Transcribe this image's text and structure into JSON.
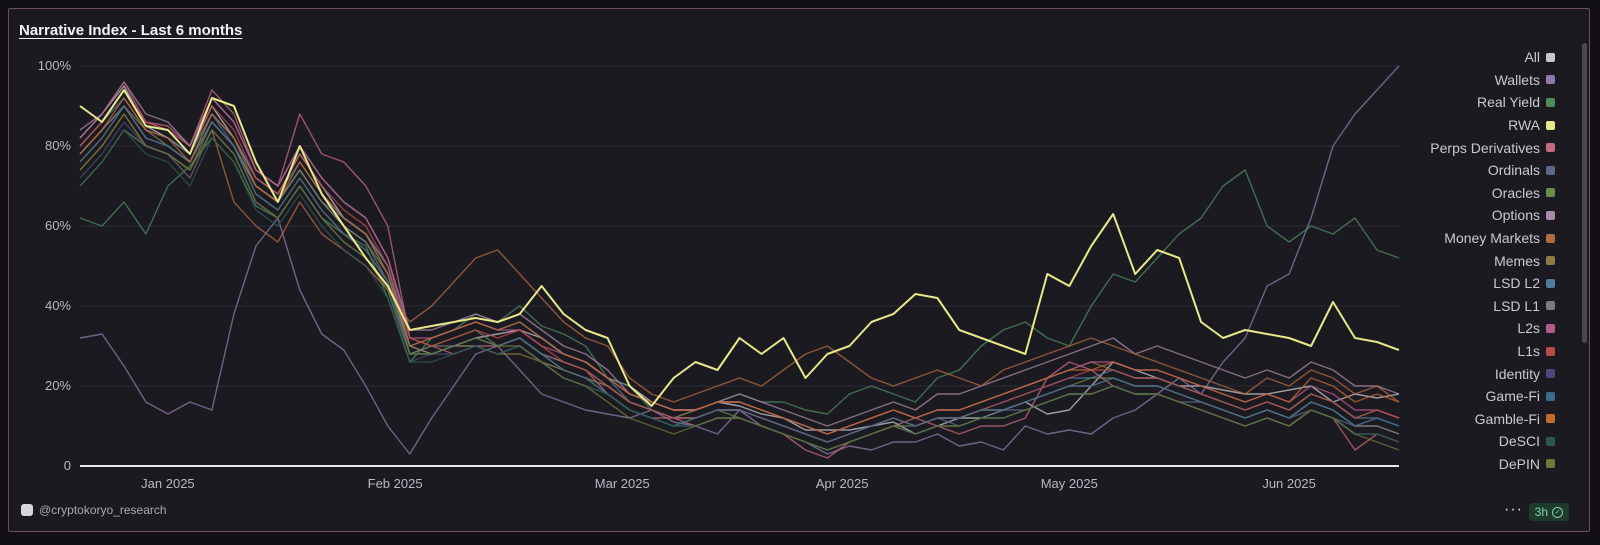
{
  "chart_data": {
    "type": "line",
    "title": "Narrative Index - Last 6 months",
    "xlabel": "",
    "ylabel": "",
    "ylim": [
      0,
      100
    ],
    "y_ticks": [
      "0",
      "20%",
      "40%",
      "60%",
      "80%",
      "100%"
    ],
    "x_ticks": [
      "Jan 2025",
      "Feb 2025",
      "Mar 2025",
      "Apr 2025",
      "May 2025",
      "Jun 2025"
    ],
    "x": [
      0,
      3,
      6,
      9,
      12,
      15,
      18,
      21,
      24,
      27,
      30,
      33,
      36,
      39,
      42,
      45,
      48,
      51,
      54,
      57,
      60,
      63,
      66,
      69,
      72,
      75,
      78,
      81,
      84,
      87,
      90,
      93,
      96,
      99,
      102,
      105,
      108,
      111,
      114,
      117,
      120,
      123,
      126,
      129,
      132,
      135,
      138,
      141,
      144,
      147,
      150,
      153,
      156,
      159,
      162,
      165,
      168,
      171,
      174,
      177,
      180
    ],
    "grid": true,
    "legend_position": "right",
    "series": [
      {
        "name": "All",
        "color": "#c7c7cc",
        "values": [
          82,
          88,
          95,
          85,
          82,
          78,
          90,
          82,
          72,
          68,
          78,
          70,
          62,
          58,
          50,
          30,
          28,
          30,
          32,
          33,
          34,
          32,
          28,
          26,
          22,
          20,
          16,
          14,
          14,
          16,
          15,
          13,
          12,
          9,
          9,
          9,
          10,
          11,
          8,
          10,
          12,
          12,
          14,
          16,
          13,
          14,
          20,
          26,
          24,
          22,
          20,
          20,
          19,
          18,
          18,
          19,
          20,
          16,
          18,
          17,
          18
        ]
      },
      {
        "name": "Wallets",
        "color": "#8f79a8",
        "values": [
          32,
          33,
          25,
          16,
          13,
          16,
          14,
          38,
          55,
          62,
          44,
          33,
          29,
          20,
          10,
          3,
          12,
          20,
          28,
          30,
          24,
          18,
          16,
          14,
          13,
          12,
          14,
          11,
          10,
          8,
          14,
          10,
          8,
          6,
          3,
          5,
          4,
          6,
          6,
          8,
          5,
          6,
          4,
          10,
          8,
          9,
          8,
          12,
          14,
          18,
          22,
          18,
          26,
          32,
          45,
          48,
          62,
          80,
          88,
          94,
          100
        ]
      },
      {
        "name": "Real Yield",
        "color": "#4e8a5e",
        "values": [
          62,
          60,
          66,
          58,
          70,
          75,
          82,
          76,
          65,
          62,
          70,
          62,
          58,
          55,
          42,
          26,
          32,
          34,
          38,
          36,
          40,
          35,
          33,
          30,
          22,
          20,
          14,
          12,
          14,
          16,
          18,
          16,
          16,
          14,
          13,
          18,
          20,
          18,
          16,
          22,
          24,
          30,
          34,
          36,
          32,
          30,
          40,
          48,
          46,
          52,
          58,
          62,
          70,
          74,
          60,
          56,
          60,
          58,
          62,
          54,
          52
        ]
      },
      {
        "name": "RWA",
        "color": "#e6e88a",
        "values": [
          90,
          86,
          94,
          85,
          84,
          78,
          92,
          90,
          76,
          66,
          80,
          68,
          60,
          52,
          45,
          34,
          35,
          36,
          37,
          36,
          38,
          45,
          38,
          34,
          32,
          20,
          15,
          22,
          26,
          24,
          32,
          28,
          32,
          22,
          28,
          30,
          36,
          38,
          43,
          42,
          34,
          32,
          30,
          28,
          48,
          45,
          55,
          63,
          48,
          54,
          52,
          36,
          32,
          34,
          33,
          32,
          30,
          41,
          32,
          31,
          29
        ]
      },
      {
        "name": "Perps Derivatives",
        "color": "#c46a7e",
        "values": [
          80,
          86,
          94,
          86,
          85,
          80,
          94,
          88,
          74,
          70,
          88,
          78,
          76,
          70,
          60,
          32,
          30,
          28,
          30,
          30,
          32,
          28,
          26,
          24,
          18,
          14,
          12,
          12,
          10,
          12,
          12,
          10,
          8,
          4,
          2,
          6,
          8,
          10,
          12,
          10,
          8,
          10,
          10,
          12,
          22,
          26,
          24,
          20,
          18,
          18,
          16,
          14,
          12,
          10,
          12,
          10,
          14,
          12,
          4,
          8,
          6
        ]
      },
      {
        "name": "Ordinals",
        "color": "#5a6a8e",
        "values": [
          78,
          84,
          90,
          82,
          80,
          76,
          88,
          80,
          70,
          66,
          74,
          66,
          62,
          58,
          50,
          30,
          28,
          30,
          30,
          28,
          30,
          26,
          24,
          22,
          20,
          16,
          14,
          12,
          12,
          14,
          14,
          12,
          10,
          8,
          6,
          8,
          10,
          12,
          10,
          12,
          10,
          12,
          14,
          14,
          16,
          18,
          18,
          20,
          18,
          18,
          16,
          16,
          14,
          12,
          14,
          12,
          14,
          12,
          10,
          12,
          10
        ]
      },
      {
        "name": "Oracles",
        "color": "#6a8a4e",
        "values": [
          70,
          76,
          84,
          80,
          78,
          74,
          86,
          80,
          70,
          66,
          74,
          66,
          60,
          56,
          48,
          28,
          30,
          32,
          34,
          30,
          32,
          28,
          24,
          22,
          18,
          14,
          12,
          10,
          12,
          14,
          12,
          10,
          8,
          6,
          4,
          6,
          8,
          10,
          10,
          12,
          12,
          14,
          14,
          16,
          18,
          20,
          22,
          22,
          20,
          20,
          18,
          16,
          14,
          12,
          14,
          12,
          16,
          14,
          10,
          10,
          8
        ]
      },
      {
        "name": "Options",
        "color": "#a88aa8",
        "values": [
          84,
          88,
          96,
          88,
          86,
          80,
          92,
          86,
          74,
          70,
          80,
          72,
          66,
          62,
          52,
          34,
          34,
          36,
          38,
          36,
          38,
          34,
          30,
          28,
          24,
          18,
          16,
          14,
          14,
          16,
          18,
          16,
          14,
          12,
          10,
          12,
          14,
          16,
          14,
          18,
          18,
          20,
          22,
          24,
          26,
          28,
          30,
          32,
          28,
          30,
          28,
          26,
          24,
          22,
          24,
          22,
          26,
          24,
          20,
          20,
          18
        ]
      },
      {
        "name": "Money Markets",
        "color": "#b06a44",
        "values": [
          74,
          80,
          88,
          80,
          78,
          72,
          84,
          66,
          60,
          56,
          66,
          58,
          54,
          50,
          44,
          36,
          40,
          46,
          52,
          54,
          48,
          42,
          36,
          32,
          30,
          22,
          18,
          16,
          18,
          20,
          22,
          20,
          24,
          28,
          30,
          26,
          22,
          20,
          22,
          24,
          22,
          20,
          24,
          26,
          28,
          30,
          32,
          30,
          28,
          26,
          24,
          22,
          20,
          18,
          22,
          20,
          24,
          22,
          18,
          20,
          16
        ]
      },
      {
        "name": "Memes",
        "color": "#8a7a44",
        "values": [
          76,
          82,
          90,
          84,
          80,
          76,
          86,
          80,
          68,
          64,
          72,
          64,
          58,
          54,
          46,
          30,
          28,
          30,
          30,
          28,
          28,
          26,
          24,
          22,
          20,
          16,
          14,
          12,
          14,
          16,
          16,
          14,
          12,
          10,
          8,
          10,
          12,
          14,
          12,
          14,
          14,
          16,
          18,
          20,
          22,
          24,
          26,
          24,
          22,
          22,
          20,
          18,
          16,
          14,
          16,
          14,
          18,
          16,
          12,
          14,
          12
        ]
      },
      {
        "name": "LSD L2",
        "color": "#4e7a9e",
        "values": [
          80,
          86,
          92,
          84,
          82,
          78,
          88,
          82,
          72,
          68,
          76,
          68,
          62,
          58,
          48,
          30,
          32,
          34,
          36,
          34,
          36,
          32,
          28,
          26,
          22,
          16,
          14,
          12,
          12,
          14,
          14,
          12,
          10,
          8,
          6,
          8,
          10,
          12,
          10,
          12,
          12,
          14,
          16,
          18,
          20,
          22,
          22,
          24,
          22,
          22,
          20,
          18,
          16,
          14,
          16,
          14,
          18,
          16,
          12,
          12,
          10
        ]
      },
      {
        "name": "LSD L1",
        "color": "#7a7a80",
        "values": [
          78,
          84,
          90,
          82,
          80,
          76,
          86,
          80,
          70,
          66,
          74,
          66,
          60,
          56,
          46,
          28,
          30,
          30,
          32,
          30,
          32,
          28,
          26,
          24,
          20,
          16,
          14,
          12,
          12,
          14,
          14,
          12,
          10,
          8,
          6,
          8,
          10,
          12,
          10,
          12,
          12,
          14,
          14,
          16,
          18,
          20,
          20,
          22,
          20,
          20,
          18,
          16,
          14,
          12,
          14,
          12,
          16,
          14,
          10,
          10,
          8
        ]
      },
      {
        "name": "L2s",
        "color": "#b45a8a",
        "values": [
          82,
          88,
          96,
          86,
          84,
          80,
          92,
          86,
          74,
          70,
          80,
          72,
          66,
          62,
          52,
          32,
          32,
          34,
          36,
          34,
          34,
          30,
          28,
          26,
          22,
          18,
          16,
          14,
          14,
          16,
          16,
          14,
          12,
          10,
          8,
          10,
          12,
          14,
          12,
          14,
          14,
          16,
          18,
          20,
          22,
          24,
          26,
          26,
          24,
          24,
          22,
          20,
          18,
          16,
          18,
          16,
          20,
          18,
          14,
          14,
          12
        ]
      },
      {
        "name": "L1s",
        "color": "#b84a4a",
        "values": [
          80,
          86,
          94,
          86,
          84,
          78,
          90,
          84,
          72,
          68,
          78,
          70,
          64,
          60,
          50,
          32,
          30,
          32,
          34,
          32,
          34,
          30,
          26,
          24,
          20,
          16,
          14,
          12,
          12,
          14,
          14,
          12,
          10,
          8,
          6,
          8,
          10,
          12,
          10,
          12,
          12,
          14,
          16,
          18,
          20,
          22,
          24,
          24,
          22,
          22,
          20,
          18,
          16,
          14,
          16,
          14,
          18,
          16,
          12,
          14,
          12
        ]
      },
      {
        "name": "Identity",
        "color": "#4a4a78",
        "values": [
          72,
          78,
          86,
          80,
          78,
          72,
          84,
          78,
          66,
          62,
          70,
          62,
          56,
          52,
          44,
          26,
          28,
          28,
          30,
          28,
          30,
          26,
          22,
          20,
          18,
          14,
          12,
          10,
          10,
          12,
          12,
          10,
          8,
          6,
          4,
          6,
          8,
          10,
          8,
          10,
          10,
          12,
          12,
          14,
          16,
          18,
          18,
          20,
          18,
          18,
          16,
          14,
          12,
          10,
          12,
          10,
          14,
          12,
          8,
          8,
          6
        ]
      },
      {
        "name": "Game-Fi",
        "color": "#3a6a8e",
        "values": [
          76,
          82,
          90,
          82,
          80,
          76,
          86,
          80,
          68,
          64,
          72,
          64,
          58,
          54,
          46,
          28,
          28,
          30,
          32,
          30,
          32,
          28,
          24,
          22,
          18,
          14,
          12,
          10,
          12,
          14,
          14,
          12,
          10,
          8,
          6,
          8,
          10,
          12,
          10,
          12,
          12,
          14,
          14,
          16,
          18,
          20,
          20,
          22,
          20,
          20,
          18,
          16,
          14,
          12,
          14,
          12,
          16,
          14,
          10,
          12,
          10
        ]
      },
      {
        "name": "Gamble-Fi",
        "color": "#c06a30",
        "values": [
          78,
          84,
          92,
          84,
          82,
          76,
          88,
          82,
          70,
          66,
          76,
          68,
          62,
          58,
          48,
          30,
          32,
          34,
          36,
          34,
          36,
          32,
          28,
          26,
          22,
          18,
          16,
          14,
          14,
          16,
          16,
          14,
          12,
          10,
          8,
          10,
          12,
          14,
          12,
          14,
          14,
          16,
          18,
          20,
          22,
          24,
          24,
          26,
          24,
          24,
          22,
          20,
          18,
          16,
          18,
          16,
          22,
          20,
          16,
          18,
          16
        ]
      },
      {
        "name": "DeSCI",
        "color": "#2a5a4e",
        "values": [
          70,
          76,
          84,
          78,
          76,
          70,
          82,
          76,
          64,
          60,
          68,
          60,
          54,
          50,
          42,
          26,
          26,
          28,
          30,
          28,
          30,
          26,
          22,
          20,
          18,
          14,
          12,
          10,
          10,
          12,
          12,
          10,
          8,
          6,
          4,
          6,
          8,
          10,
          8,
          10,
          10,
          12,
          12,
          14,
          16,
          18,
          18,
          20,
          18,
          18,
          16,
          14,
          12,
          10,
          12,
          10,
          14,
          12,
          8,
          8,
          6
        ]
      },
      {
        "name": "DePIN",
        "color": "#6a7a3a",
        "values": [
          74,
          80,
          88,
          80,
          78,
          74,
          84,
          78,
          66,
          62,
          70,
          62,
          56,
          52,
          44,
          28,
          28,
          30,
          32,
          30,
          30,
          26,
          22,
          20,
          16,
          12,
          10,
          8,
          10,
          12,
          12,
          10,
          8,
          6,
          4,
          6,
          8,
          10,
          8,
          10,
          10,
          12,
          12,
          14,
          16,
          18,
          18,
          20,
          18,
          18,
          16,
          14,
          12,
          10,
          12,
          10,
          14,
          12,
          8,
          6,
          4
        ]
      }
    ]
  },
  "footer": {
    "handle": "@cryptokoryo_research",
    "more": "···",
    "refresh": "3h"
  }
}
